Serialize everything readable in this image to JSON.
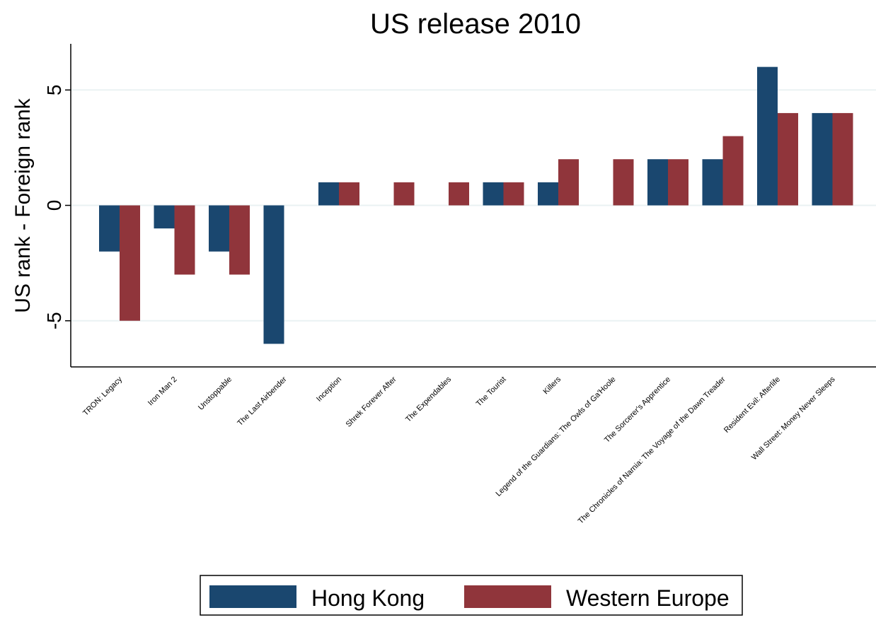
{
  "chart_data": {
    "type": "bar",
    "title": "US release 2010",
    "y_label": "US rank - Foreign rank",
    "categories": [
      "TRON: Legacy",
      "Iron Man 2",
      "Unstoppable",
      "The Last Airbender",
      "Inception",
      "Shrek Forever After",
      "The Expendables",
      "The Tourist",
      "Killers",
      "Legend of the Guardians: The Owls of Ga'Hoole",
      "The Sorcerer's Apprentice",
      "The Chronicles of Narnia: The Voyage of the Dawn Treader",
      "Resident Evil: Afterlife",
      "Wall Street: Money Never Sleeps"
    ],
    "series": [
      {
        "name": "Hong Kong",
        "color": "#1a476f",
        "values": [
          -2,
          -1,
          -2,
          -6,
          1,
          0,
          0,
          1,
          1,
          0,
          2,
          2,
          6,
          4
        ]
      },
      {
        "name": "Western Europe",
        "color": "#90353b",
        "values": [
          -5,
          -3,
          -3,
          0,
          1,
          1,
          1,
          1,
          2,
          2,
          2,
          3,
          4,
          4
        ]
      }
    ],
    "ylim": [
      -7,
      7
    ],
    "yticks": [
      -5,
      0,
      5
    ],
    "grid": true,
    "legend": "bottom"
  }
}
